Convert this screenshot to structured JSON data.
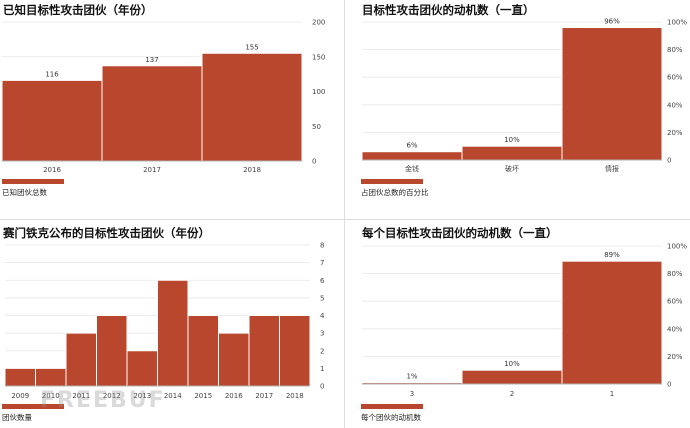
{
  "colors": {
    "bar": "#b9472d",
    "grid": "#e6e6e6"
  },
  "chart_data": [
    {
      "type": "bar",
      "title": "已知目标性攻击团伙（年份）",
      "categories": [
        "2016",
        "2017",
        "2018"
      ],
      "values": [
        116,
        137,
        155
      ],
      "data_labels": [
        "116",
        "137",
        "155"
      ],
      "ylim": [
        0,
        200
      ],
      "yticks": [
        "0",
        "50",
        "100",
        "150",
        "200"
      ],
      "legend": "已知团伙总数",
      "grid": true
    },
    {
      "type": "bar",
      "title": "目标性攻击团伙的动机数（一直）",
      "categories": [
        "金钱",
        "破坏",
        "情报"
      ],
      "values": [
        6,
        10,
        96
      ],
      "data_labels": [
        "6%",
        "10%",
        "96%"
      ],
      "ylim": [
        0,
        100
      ],
      "yticks": [
        "0",
        "20%",
        "40%",
        "60%",
        "80%",
        "100%"
      ],
      "legend": "占团伙总数的百分比",
      "grid": true
    },
    {
      "type": "bar",
      "title": "赛门铁克公布的目标性攻击团伙（年份）",
      "categories": [
        "2009",
        "2010",
        "2011",
        "2012",
        "2013",
        "2014",
        "2015",
        "2016",
        "2017",
        "2018"
      ],
      "values": [
        1,
        1,
        3,
        4,
        2,
        6,
        4,
        3,
        4,
        4
      ],
      "ylim": [
        0,
        8
      ],
      "yticks": [
        "0",
        "1",
        "2",
        "3",
        "4",
        "5",
        "6",
        "7",
        "8"
      ],
      "legend": "团伙数量",
      "grid": true
    },
    {
      "type": "bar",
      "title": "每个目标性攻击团伙的动机数（一直）",
      "categories": [
        "3",
        "2",
        "1"
      ],
      "values": [
        1,
        10,
        89
      ],
      "data_labels": [
        "1%",
        "10%",
        "89%"
      ],
      "ylim": [
        0,
        100
      ],
      "yticks": [
        "0",
        "20%",
        "40%",
        "60%",
        "80%",
        "100%"
      ],
      "legend": "每个团伙的动机数",
      "grid": true
    }
  ],
  "watermark": "FREEBUF"
}
